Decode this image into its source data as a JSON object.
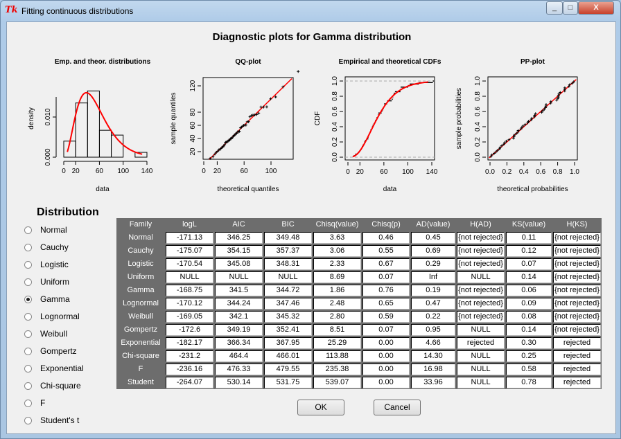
{
  "window": {
    "title": "Fitting continuous distributions",
    "minimize": "_",
    "maximize": "□",
    "close": "X"
  },
  "main_title": "Diagnostic plots for Gamma distribution",
  "plots": {
    "hist": {
      "title": "Emp. and theor. distributions",
      "xlabel": "data",
      "ylabel": "density",
      "xticks": [
        "0",
        "20",
        "60",
        "100",
        "140"
      ],
      "yticks": [
        "0.000",
        "0.010"
      ],
      "bins": [
        0,
        20,
        40,
        60,
        80,
        100,
        120,
        140
      ],
      "densities": [
        0.004,
        0.0135,
        0.0165,
        0.0067,
        0.0055,
        0,
        0.0012
      ]
    },
    "qq": {
      "title": "QQ-plot",
      "xlabel": "theoretical quantiles",
      "ylabel": "sample quantiles",
      "xticks": [
        "0",
        "20",
        "60",
        "100"
      ],
      "yticks": [
        "20",
        "40",
        "60",
        "80",
        "120"
      ]
    },
    "cdf": {
      "title": "Empirical and theoretical CDFs",
      "xlabel": "data",
      "ylabel": "CDF",
      "xticks": [
        "0",
        "20",
        "60",
        "100",
        "140"
      ],
      "yticks": [
        "0.0",
        "0.2",
        "0.4",
        "0.6",
        "0.8",
        "1.0"
      ]
    },
    "pp": {
      "title": "PP-plot",
      "xlabel": "theoretical probabilities",
      "ylabel": "sample probabilities",
      "xticks": [
        "0.0",
        "0.2",
        "0.4",
        "0.6",
        "0.8",
        "1.0"
      ],
      "yticks": [
        "0.0",
        "0.2",
        "0.4",
        "0.6",
        "0.8",
        "1.0"
      ]
    },
    "colors": {
      "fit": "#ff0000",
      "points": "#000000"
    }
  },
  "distribution": {
    "heading": "Distribution",
    "selected": "Gamma",
    "options": [
      "Normal",
      "Cauchy",
      "Logistic",
      "Uniform",
      "Gamma",
      "Lognormal",
      "Weibull",
      "Gompertz",
      "Exponential",
      "Chi-square",
      "F",
      "Student's t"
    ]
  },
  "table": {
    "headers": [
      "Family",
      "logL",
      "AIC",
      "BIC",
      "Chisq(value)",
      "Chisq(p)",
      "AD(value)",
      "H(AD)",
      "KS(value)",
      "H(KS)"
    ],
    "rows": [
      [
        "Normal",
        "-171.13",
        "346.25",
        "349.48",
        "3.63",
        "0.46",
        "0.45",
        "{not rejected}",
        "0.11",
        "{not rejected}"
      ],
      [
        "Cauchy",
        "-175.07",
        "354.15",
        "357.37",
        "3.06",
        "0.55",
        "0.69",
        "{not rejected}",
        "0.12",
        "{not rejected}"
      ],
      [
        "Logistic",
        "-170.54",
        "345.08",
        "348.31",
        "2.33",
        "0.67",
        "0.29",
        "{not rejected}",
        "0.07",
        "{not rejected}"
      ],
      [
        "Uniform",
        "NULL",
        "NULL",
        "NULL",
        "8.69",
        "0.07",
        "Inf",
        "NULL",
        "0.14",
        "{not rejected}"
      ],
      [
        "Gamma",
        "-168.75",
        "341.5",
        "344.72",
        "1.86",
        "0.76",
        "0.19",
        "{not rejected}",
        "0.06",
        "{not rejected}"
      ],
      [
        "Lognormal",
        "-170.12",
        "344.24",
        "347.46",
        "2.48",
        "0.65",
        "0.47",
        "{not rejected}",
        "0.09",
        "{not rejected}"
      ],
      [
        "Weibull",
        "-169.05",
        "342.1",
        "345.32",
        "2.80",
        "0.59",
        "0.22",
        "{not rejected}",
        "0.08",
        "{not rejected}"
      ],
      [
        "Gompertz",
        "-172.6",
        "349.19",
        "352.41",
        "8.51",
        "0.07",
        "0.95",
        "NULL",
        "0.14",
        "{not rejected}"
      ],
      [
        "Exponential",
        "-182.17",
        "366.34",
        "367.95",
        "25.29",
        "0.00",
        "4.66",
        "rejected",
        "0.30",
        "rejected"
      ],
      [
        "Chi-square",
        "-231.2",
        "464.4",
        "466.01",
        "113.88",
        "0.00",
        "14.30",
        "NULL",
        "0.25",
        "rejected"
      ],
      [
        "F",
        "-236.16",
        "476.33",
        "479.55",
        "235.38",
        "0.00",
        "16.98",
        "NULL",
        "0.58",
        "rejected"
      ],
      [
        "Student",
        "-264.07",
        "530.14",
        "531.75",
        "539.07",
        "0.00",
        "33.96",
        "NULL",
        "0.78",
        "rejected"
      ]
    ]
  },
  "buttons": {
    "ok": "OK",
    "cancel": "Cancel"
  }
}
